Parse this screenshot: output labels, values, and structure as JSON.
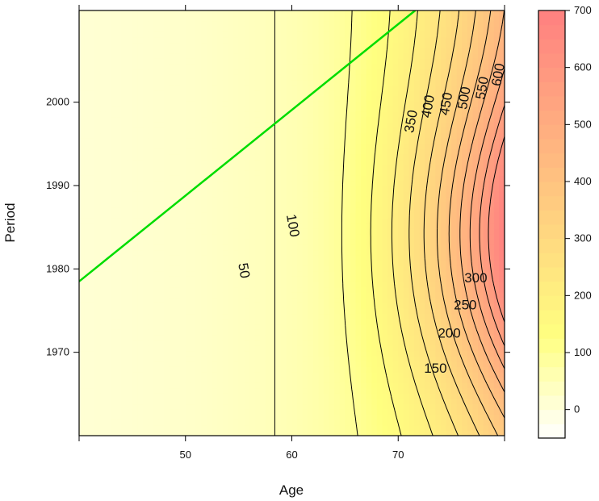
{
  "chart_data": {
    "type": "contour",
    "xlabel": "Age",
    "ylabel": "Period",
    "xlim": [
      40,
      80
    ],
    "ylim": [
      1960,
      2011
    ],
    "x_ticks": [
      50,
      60,
      70
    ],
    "y_ticks": [
      1970,
      1980,
      1990,
      2000
    ],
    "colorbar": {
      "range": [
        -50,
        700
      ],
      "ticks": [
        0,
        100,
        200,
        300,
        400,
        500,
        600,
        700
      ],
      "low_color": "#ffffff",
      "mid_color": "#ffff80",
      "high_color": "#ff8080"
    },
    "contour_levels": [
      50,
      100,
      150,
      200,
      250,
      300,
      350,
      400,
      450,
      500,
      550,
      600
    ],
    "contour_labels": [
      {
        "text": "50",
        "age": 55.5,
        "period": 1979.8,
        "angle": 80
      },
      {
        "text": "100",
        "age": 60.1,
        "period": 1985.2,
        "angle": 80
      },
      {
        "text": "150",
        "age": 73.5,
        "period": 1968.1,
        "angle": 0
      },
      {
        "text": "200",
        "age": 74.8,
        "period": 1972.3,
        "angle": 0
      },
      {
        "text": "250",
        "age": 76.3,
        "period": 1975.7,
        "angle": 0
      },
      {
        "text": "300",
        "age": 77.3,
        "period": 1978.9,
        "angle": 0
      },
      {
        "text": "350",
        "age": 71.2,
        "period": 1997.7,
        "angle": -80
      },
      {
        "text": "400",
        "age": 72.8,
        "period": 1999.5,
        "angle": -80
      },
      {
        "text": "450",
        "age": 74.5,
        "period": 1999.8,
        "angle": -80
      },
      {
        "text": "500",
        "age": 76.2,
        "period": 2000.5,
        "angle": -80
      },
      {
        "text": "550",
        "age": 77.9,
        "period": 2001.7,
        "angle": -80
      },
      {
        "text": "600",
        "age": 79.4,
        "period": 2003.3,
        "angle": -80
      }
    ],
    "reference_line": {
      "color": "#00dd00",
      "points": [
        [
          40,
          1978.5
        ],
        [
          71.6,
          2011
        ]
      ]
    }
  }
}
